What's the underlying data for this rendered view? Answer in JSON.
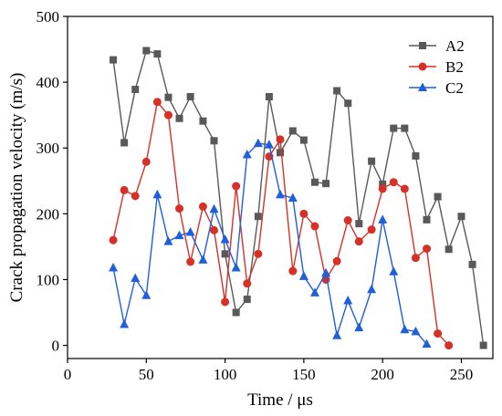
{
  "chart_data": {
    "type": "line",
    "xlabel": "Time / μs",
    "ylabel": "Crack propagation velocity (m/s)",
    "xlim": [
      0,
      270
    ],
    "ylim": [
      -20,
      500
    ],
    "x_ticks": [
      0,
      50,
      100,
      150,
      200,
      250
    ],
    "y_ticks": [
      0,
      100,
      200,
      300,
      400,
      500
    ],
    "grid": false,
    "legend_position": "top-right",
    "series": [
      {
        "name": "A2",
        "color": "#595959",
        "marker": "square",
        "x": [
          29,
          36,
          43,
          50,
          57,
          64,
          71,
          78,
          86,
          93,
          100,
          107,
          114,
          121,
          128,
          135,
          143,
          150,
          157,
          164,
          171,
          178,
          185,
          193,
          200,
          207,
          214,
          221,
          228,
          235,
          242,
          250,
          257,
          264
        ],
        "y": [
          434,
          308,
          389,
          448,
          443,
          377,
          345,
          378,
          341,
          311,
          139,
          50,
          70,
          196,
          378,
          293,
          326,
          312,
          248,
          246,
          387,
          368,
          185,
          280,
          245,
          330,
          330,
          288,
          191,
          226,
          146,
          196,
          123,
          0
        ]
      },
      {
        "name": "B2",
        "color": "#d73027",
        "marker": "circle",
        "x": [
          29,
          36,
          43,
          50,
          57,
          64,
          71,
          78,
          86,
          93,
          100,
          107,
          114,
          121,
          128,
          135,
          143,
          150,
          157,
          164,
          171,
          178,
          185,
          193,
          200,
          207,
          214,
          221,
          228,
          235,
          242
        ],
        "y": [
          160,
          236,
          227,
          279,
          370,
          350,
          208,
          127,
          211,
          175,
          66,
          242,
          94,
          139,
          287,
          313,
          113,
          200,
          181,
          100,
          128,
          190,
          158,
          176,
          238,
          248,
          238,
          133,
          147,
          18,
          0
        ]
      },
      {
        "name": "C2",
        "color": "#1f5fdc",
        "marker": "triangle",
        "x": [
          29,
          36,
          43,
          50,
          57,
          64,
          71,
          78,
          86,
          93,
          100,
          107,
          114,
          121,
          128,
          135,
          143,
          150,
          157,
          164,
          171,
          178,
          185,
          193,
          200,
          207,
          214,
          221,
          228
        ],
        "y": [
          118,
          32,
          102,
          76,
          229,
          158,
          167,
          172,
          130,
          207,
          161,
          118,
          290,
          307,
          305,
          229,
          224,
          105,
          80,
          110,
          15,
          68,
          27,
          85,
          191,
          112,
          24,
          21,
          2
        ]
      }
    ]
  }
}
